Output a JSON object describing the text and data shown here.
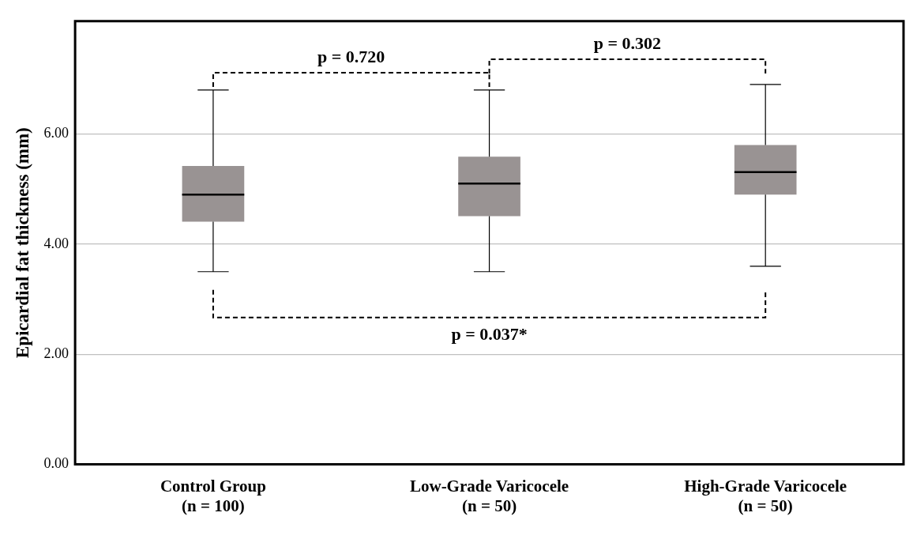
{
  "chart_data": {
    "type": "box",
    "ylabel": "Epicardial fat thickness (mm)",
    "categories": [
      "Control Group\n(n = 100)",
      "Low-Grade Varicocele\n(n = 50)",
      "High-Grade Varicocele\n(n = 50)"
    ],
    "boxes": [
      {
        "low": 3.5,
        "q1": 4.41,
        "median": 4.9,
        "q3": 5.42,
        "high": 6.8
      },
      {
        "low": 3.5,
        "q1": 4.51,
        "median": 5.1,
        "q3": 5.59,
        "high": 6.8
      },
      {
        "low": 3.6,
        "q1": 4.9,
        "median": 5.31,
        "q3": 5.8,
        "high": 6.9
      }
    ],
    "color": "#999393",
    "ylim": [
      0,
      8.05
    ],
    "yticks": [
      {
        "value": 0,
        "label": "0.00"
      },
      {
        "value": 2,
        "label": "2.00"
      },
      {
        "value": 4,
        "label": "4.00"
      },
      {
        "value": 6,
        "label": "6.00"
      }
    ],
    "grid": "y",
    "legend": false,
    "annotations": [
      "p = 0.720",
      "p = 0.302",
      "p = 0.037*"
    ]
  }
}
